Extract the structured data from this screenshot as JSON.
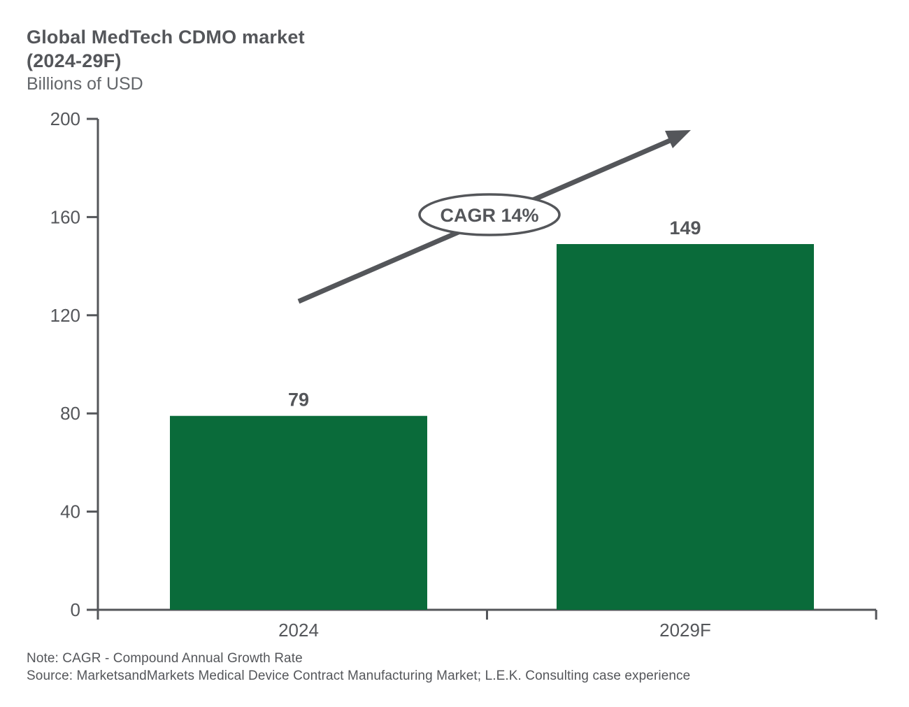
{
  "header": {
    "title_line1": "Global MedTech CDMO market",
    "title_line2": "(2024-29F)",
    "subtitle": "Billions of USD"
  },
  "chart_data": {
    "type": "bar",
    "title": "Global MedTech CDMO market (2024-29F)",
    "ylabel": "Billions of USD",
    "xlabel": "",
    "categories": [
      "2024",
      "2029F"
    ],
    "values": [
      79,
      149
    ],
    "value_labels": [
      "79",
      "149"
    ],
    "ylim": [
      0,
      200
    ],
    "yticks": [
      0,
      40,
      80,
      120,
      160,
      200
    ],
    "grid": false,
    "legend": "none",
    "annotation": {
      "label": "CAGR 14%",
      "shape": "ellipse",
      "arrow": true
    }
  },
  "footer": {
    "note": "Note: CAGR - Compound Annual Growth Rate",
    "source": "Source: MarketsandMarkets Medical Device Contract Manufacturing Market; L.E.K. Consulting case experience"
  },
  "colors": {
    "bar": "#0A6B3A",
    "axis": "#54565A",
    "text": "#54565A",
    "subtitle_text": "#63666A",
    "annotation_fill": "#ffffff",
    "annotation_stroke": "#54565A"
  }
}
